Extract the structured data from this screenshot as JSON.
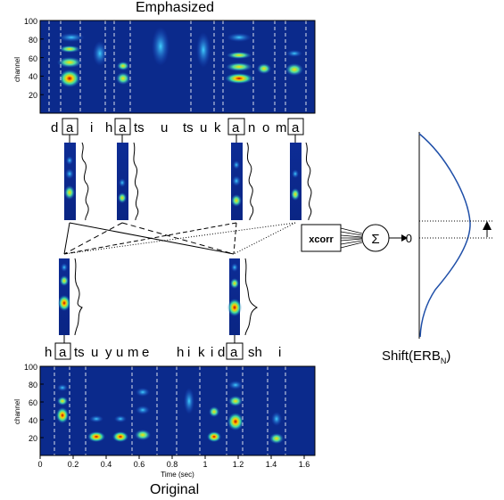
{
  "top": {
    "title": "Emphasized",
    "ylabel": "channel",
    "yticks": [
      "100",
      "80",
      "60",
      "40",
      "20"
    ],
    "phonemes": [
      "d",
      "a",
      "i",
      "h",
      "a",
      "ts",
      "u",
      "ts",
      "u",
      "k",
      "a",
      "n",
      "o",
      "m",
      "a"
    ]
  },
  "bottom": {
    "title": "Original",
    "ylabel": "channel",
    "xlabel": "Time (sec)",
    "yticks": [
      "100",
      "80",
      "60",
      "40",
      "20"
    ],
    "xticks": [
      "0",
      "0.2",
      "0.4",
      "0.6",
      "0.8",
      "1",
      "1.2",
      "1.4",
      "1.6"
    ],
    "phonemes": [
      "h",
      "a",
      "ts",
      "u",
      "y",
      "u",
      "m",
      "e",
      "h",
      "i",
      "k",
      "i",
      "d",
      "a",
      "sh",
      "i"
    ]
  },
  "xcorr": {
    "box_label": "xcorr",
    "sum_symbol": "Σ",
    "zero_label": "0"
  },
  "shift_label": {
    "main": "Shift(ERB",
    "sub": "N",
    "close": ")"
  },
  "colors": {
    "curve": "#1f4fa8",
    "spec_bg": "#0b2a8c",
    "spec_hot": "#d01010"
  }
}
